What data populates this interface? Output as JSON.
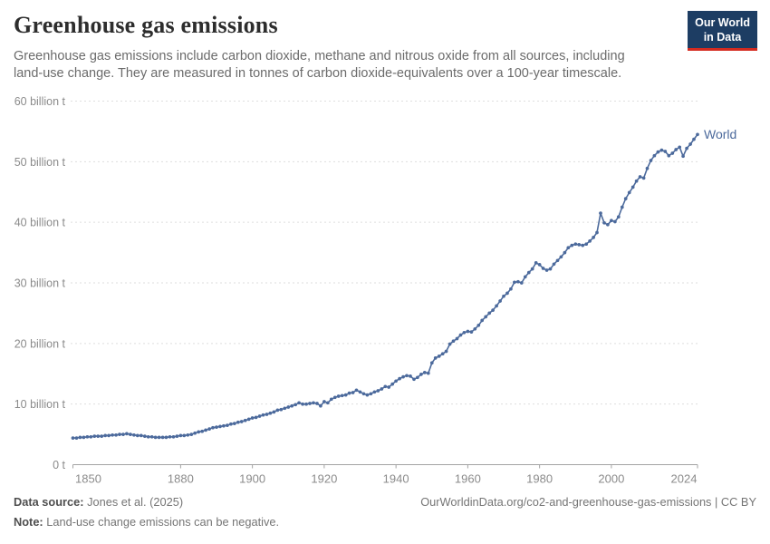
{
  "header": {
    "title": "Greenhouse gas emissions",
    "subtitle_line1": "Greenhouse gas emissions include carbon dioxide, methane and nitrous oxide from all sources, including",
    "subtitle_line2": "land-use change. They are measured in tonnes of carbon dioxide-equivalents over a 100-year timescale."
  },
  "logo": {
    "line1": "Our World",
    "line2": "in Data",
    "bg_color": "#1d3d63",
    "bar_color": "#d42b20",
    "text_color": "#ffffff"
  },
  "chart_data": {
    "type": "line",
    "title": "Greenhouse gas emissions",
    "x_start": 1850,
    "x_end": 2024,
    "xlim": [
      1850,
      2024
    ],
    "ylim": [
      0,
      60
    ],
    "x_tick_years": [
      1850,
      1880,
      1900,
      1920,
      1940,
      1960,
      1980,
      2000,
      2024
    ],
    "y_tick_values": [
      0,
      10,
      20,
      30,
      40,
      50,
      60
    ],
    "y_tick_labels": [
      "0 t",
      "10 billion t",
      "20 billion t",
      "30 billion t",
      "40 billion t",
      "50 billion t",
      "60 billion t"
    ],
    "grid": "dashed-horizontal",
    "legend_position": "line-end-label",
    "axis_color": "#a3a3a3",
    "grid_color": "#dedede",
    "tick_label_color": "#8b8b8b",
    "series": [
      {
        "name": "World",
        "color": "#4c6a9c",
        "x_step": 1,
        "values": [
          4.4,
          4.4,
          4.5,
          4.5,
          4.6,
          4.6,
          4.7,
          4.7,
          4.7,
          4.8,
          4.8,
          4.9,
          4.9,
          5.0,
          5.0,
          5.1,
          5.0,
          4.9,
          4.8,
          4.8,
          4.7,
          4.6,
          4.6,
          4.5,
          4.5,
          4.5,
          4.5,
          4.6,
          4.6,
          4.7,
          4.8,
          4.8,
          4.9,
          5.0,
          5.2,
          5.4,
          5.5,
          5.7,
          5.9,
          6.1,
          6.2,
          6.3,
          6.4,
          6.5,
          6.7,
          6.8,
          7.0,
          7.1,
          7.3,
          7.5,
          7.7,
          7.8,
          8.0,
          8.2,
          8.3,
          8.5,
          8.7,
          9.0,
          9.1,
          9.3,
          9.5,
          9.7,
          9.9,
          10.2,
          10.0,
          10.0,
          10.1,
          10.2,
          10.1,
          9.7,
          10.4,
          10.2,
          10.8,
          11.1,
          11.3,
          11.4,
          11.5,
          11.8,
          11.9,
          12.3,
          12.0,
          11.7,
          11.5,
          11.7,
          12.0,
          12.2,
          12.5,
          12.9,
          12.8,
          13.3,
          13.8,
          14.2,
          14.5,
          14.7,
          14.6,
          14.1,
          14.4,
          14.9,
          15.2,
          15.1,
          16.8,
          17.6,
          17.9,
          18.3,
          18.7,
          19.9,
          20.4,
          20.8,
          21.4,
          21.8,
          22.0,
          21.9,
          22.4,
          23.0,
          23.8,
          24.4,
          25.0,
          25.5,
          26.2,
          27.0,
          27.8,
          28.3,
          29.0,
          30.1,
          30.2,
          30.0,
          31.0,
          31.7,
          32.3,
          33.3,
          33.0,
          32.4,
          32.1,
          32.3,
          33.1,
          33.7,
          34.3,
          35.0,
          35.8,
          36.2,
          36.4,
          36.3,
          36.2,
          36.4,
          36.9,
          37.5,
          38.3,
          41.5,
          39.9,
          39.6,
          40.3,
          40.1,
          40.9,
          42.5,
          43.9,
          44.9,
          45.8,
          46.8,
          47.5,
          47.3,
          48.9,
          50.2,
          51.0,
          51.6,
          51.9,
          51.7,
          51.0,
          51.4,
          52.0,
          52.4,
          50.9,
          52.2,
          52.9,
          53.7,
          54.5
        ]
      }
    ]
  },
  "footer": {
    "source_label": "Data source:",
    "source_value": " Jones et al. (2025)",
    "note_label": "Note:",
    "note_value": " Land-use change emissions can be negative.",
    "attribution": "OurWorldinData.org/co2-and-greenhouse-gas-emissions | CC BY"
  }
}
